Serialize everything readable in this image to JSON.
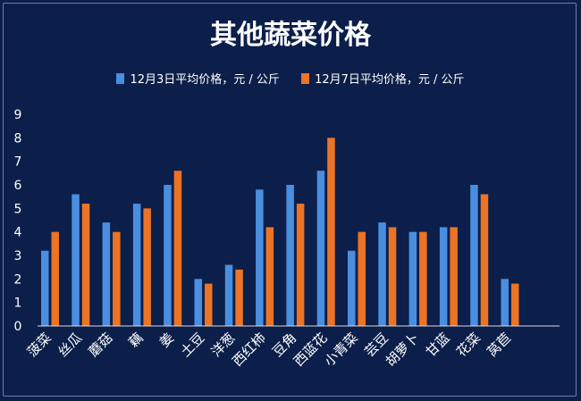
{
  "chart_data": {
    "type": "bar",
    "title": "其他蔬菜价格",
    "categories": [
      "菠菜",
      "丝瓜",
      "蘑菇",
      "藕",
      "姜",
      "土豆",
      "洋葱",
      "西红柿",
      "豆角",
      "西蓝花",
      "小青菜",
      "芸豆",
      "胡萝卜",
      "甘蓝",
      "花菜",
      "莴苣"
    ],
    "series": [
      {
        "name": "12月3日平均价格，元 / 公斤",
        "color": "#4a8ee0",
        "values": [
          3.2,
          5.6,
          4.4,
          5.2,
          6.0,
          2.0,
          2.6,
          5.8,
          6.0,
          6.6,
          3.2,
          4.4,
          4.0,
          4.2,
          6.0,
          2.0
        ]
      },
      {
        "name": "12月7日平均价格，元 / 公斤",
        "color": "#ec7424",
        "values": [
          4.0,
          5.2,
          4.0,
          5.0,
          6.6,
          1.8,
          2.4,
          4.2,
          5.2,
          8.0,
          4.0,
          4.2,
          4.0,
          4.2,
          5.6,
          1.8
        ]
      }
    ],
    "ylim": [
      0,
      9
    ],
    "yticks": [
      "0",
      "1",
      "2",
      "3",
      "4",
      "5",
      "6",
      "7",
      "8",
      "9"
    ],
    "legend_position": "top",
    "grid": false
  }
}
